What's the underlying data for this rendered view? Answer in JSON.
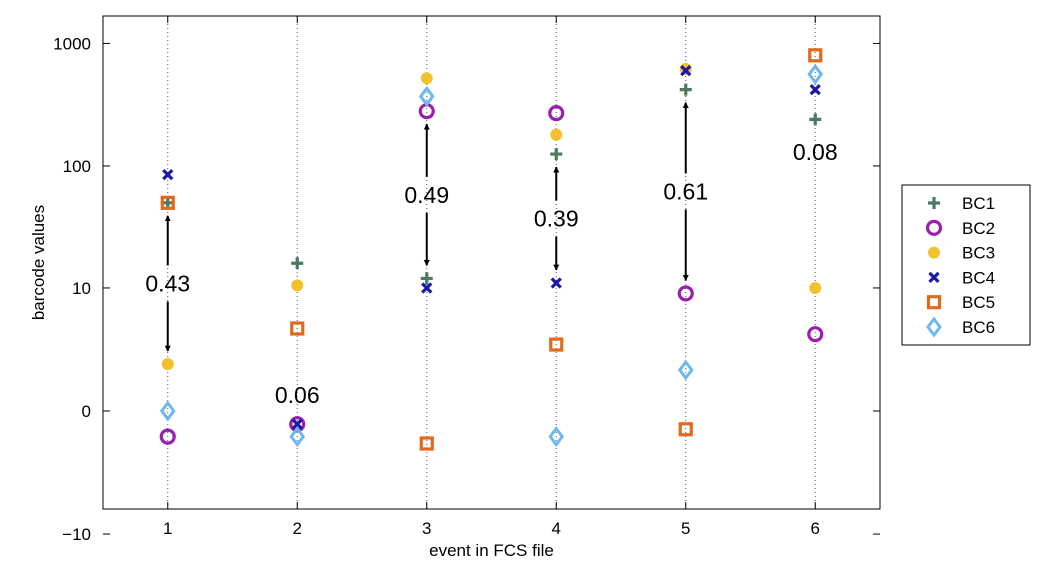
{
  "chart_data": {
    "type": "scatter",
    "xlabel": "event in FCS file",
    "ylabel": "barcode values",
    "x": [
      1,
      2,
      3,
      4,
      5,
      6
    ],
    "xlim": [
      0.5,
      6.5
    ],
    "y_scale": "arcsinh (log-like)",
    "ylim": [
      -30,
      5000
    ],
    "y_ticks": [
      -10,
      0,
      10,
      100,
      1000
    ],
    "y_tick_labels": [
      "−10",
      "0",
      "10",
      "100",
      "1000"
    ],
    "x_tick_labels": [
      "1",
      "2",
      "3",
      "4",
      "5",
      "6"
    ],
    "grid": "vertical dotted lines at each event",
    "legend_position": "right, outside",
    "series": [
      {
        "name": "BC1",
        "marker": "plus",
        "color": "#4a7a5f",
        "values": [
          50,
          16,
          12,
          125,
          420,
          240
        ]
      },
      {
        "name": "BC2",
        "marker": "circle",
        "color": "#9b1fae",
        "values": [
          -1,
          -0.5,
          280,
          270,
          9,
          4
        ]
      },
      {
        "name": "BC3",
        "marker": "dot",
        "color": "#f2c12e",
        "values": [
          2,
          10.5,
          520,
          180,
          620,
          10
        ]
      },
      {
        "name": "BC4",
        "marker": "x",
        "color": "#1a1aa6",
        "values": [
          85,
          -0.5,
          10,
          11,
          600,
          420
        ]
      },
      {
        "name": "BC5",
        "marker": "square",
        "color": "#e06b1f",
        "values": [
          50,
          4.5,
          -1.3,
          3.2,
          -0.7,
          800
        ]
      },
      {
        "name": "BC6",
        "marker": "diamond",
        "color": "#6cb8ef",
        "values": [
          0,
          -1,
          370,
          -1,
          1.7,
          560
        ]
      }
    ],
    "annotations": [
      {
        "x": 1,
        "text": "0.43",
        "arrow_from": 50,
        "arrow_to": 2
      },
      {
        "x": 2,
        "text": "0.06"
      },
      {
        "x": 3,
        "text": "0.49",
        "arrow_from": 280,
        "arrow_to": 12
      },
      {
        "x": 4,
        "text": "0.39",
        "arrow_from": 125,
        "arrow_to": 11
      },
      {
        "x": 5,
        "text": "0.61",
        "arrow_from": 420,
        "arrow_to": 9
      },
      {
        "x": 6,
        "text": "0.08"
      }
    ]
  }
}
